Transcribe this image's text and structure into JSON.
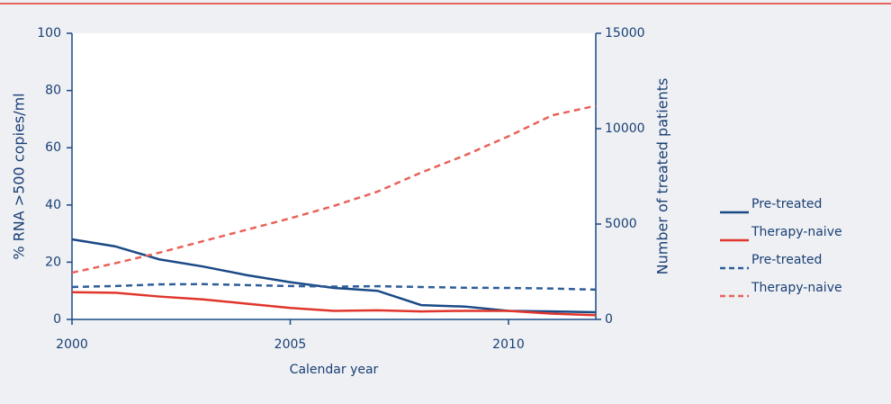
{
  "chart_data": {
    "type": "line",
    "x_label": "Calendar year",
    "y_label": "% RNA >500 copies/ml",
    "y2_label": "Number of treated patients",
    "x": [
      2000,
      2001,
      2002,
      2003,
      2004,
      2005,
      2006,
      2007,
      2008,
      2009,
      2010,
      2011,
      2012
    ],
    "xlim": [
      2000,
      2012
    ],
    "xticks": [
      2000,
      2005,
      2010
    ],
    "ylim": [
      0,
      100
    ],
    "yticks": [
      0,
      20,
      40,
      60,
      80,
      100
    ],
    "y2lim": [
      0,
      15000
    ],
    "y2ticks": [
      0,
      5000,
      10000,
      15000
    ],
    "series": [
      {
        "name": "Pre-treated",
        "color": "#1a4a86",
        "line_style": "solid",
        "values": [
          28,
          25.5,
          21,
          18.5,
          15.5,
          13,
          11,
          10,
          5,
          4.5,
          3,
          2.8,
          2.5
        ]
      },
      {
        "name": "Therapy-naive",
        "color": "#e0352b",
        "line_style": "solid",
        "values": [
          9.5,
          9.3,
          8,
          7,
          5.5,
          4,
          3,
          3.2,
          2.8,
          3,
          3,
          2,
          1.5
        ]
      },
      {
        "name": "Pre-treated",
        "color": "#2f5d9a",
        "line_style": "dashed",
        "axis": "y2",
        "values": [
          1700,
          1750,
          1840,
          1850,
          1800,
          1750,
          1720,
          1740,
          1700,
          1660,
          1650,
          1620,
          1560
        ]
      },
      {
        "name": "Therapy-naive",
        "color": "#e8635a",
        "line_style": "dashed",
        "axis": "y2",
        "values": [
          2450,
          2950,
          3500,
          4100,
          4700,
          5300,
          5950,
          6700,
          7700,
          8600,
          9600,
          10700,
          11200
        ]
      }
    ]
  }
}
